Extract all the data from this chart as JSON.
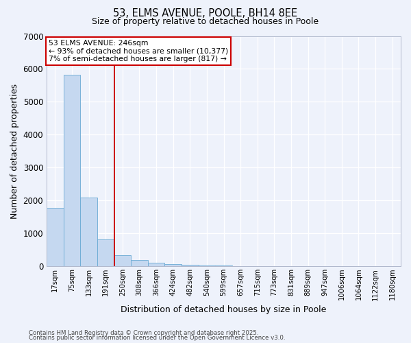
{
  "title": "53, ELMS AVENUE, POOLE, BH14 8EE",
  "subtitle": "Size of property relative to detached houses in Poole",
  "xlabel": "Distribution of detached houses by size in Poole",
  "ylabel": "Number of detached properties",
  "categories": [
    "17sqm",
    "75sqm",
    "133sqm",
    "191sqm",
    "250sqm",
    "308sqm",
    "366sqm",
    "424sqm",
    "482sqm",
    "540sqm",
    "599sqm",
    "657sqm",
    "715sqm",
    "773sqm",
    "831sqm",
    "889sqm",
    "947sqm",
    "1006sqm",
    "1064sqm",
    "1122sqm",
    "1180sqm"
  ],
  "values": [
    1780,
    5820,
    2090,
    820,
    340,
    185,
    110,
    70,
    52,
    28,
    18,
    9,
    5,
    1,
    0,
    0,
    0,
    0,
    0,
    0,
    0
  ],
  "bar_color": "#c5d8f0",
  "bar_edge_color": "#6aaad4",
  "red_line_x": 3.5,
  "annotation_title": "53 ELMS AVENUE: 246sqm",
  "annotation_line1": "← 93% of detached houses are smaller (10,377)",
  "annotation_line2": "7% of semi-detached houses are larger (817) →",
  "annotation_box_facecolor": "#ffffff",
  "annotation_border_color": "#cc0000",
  "red_line_color": "#cc0000",
  "ylim": [
    0,
    7000
  ],
  "yticks": [
    0,
    1000,
    2000,
    3000,
    4000,
    5000,
    6000,
    7000
  ],
  "background_color": "#eef2fb",
  "grid_color": "#ffffff",
  "footnote1": "Contains HM Land Registry data © Crown copyright and database right 2025.",
  "footnote2": "Contains public sector information licensed under the Open Government Licence v3.0."
}
